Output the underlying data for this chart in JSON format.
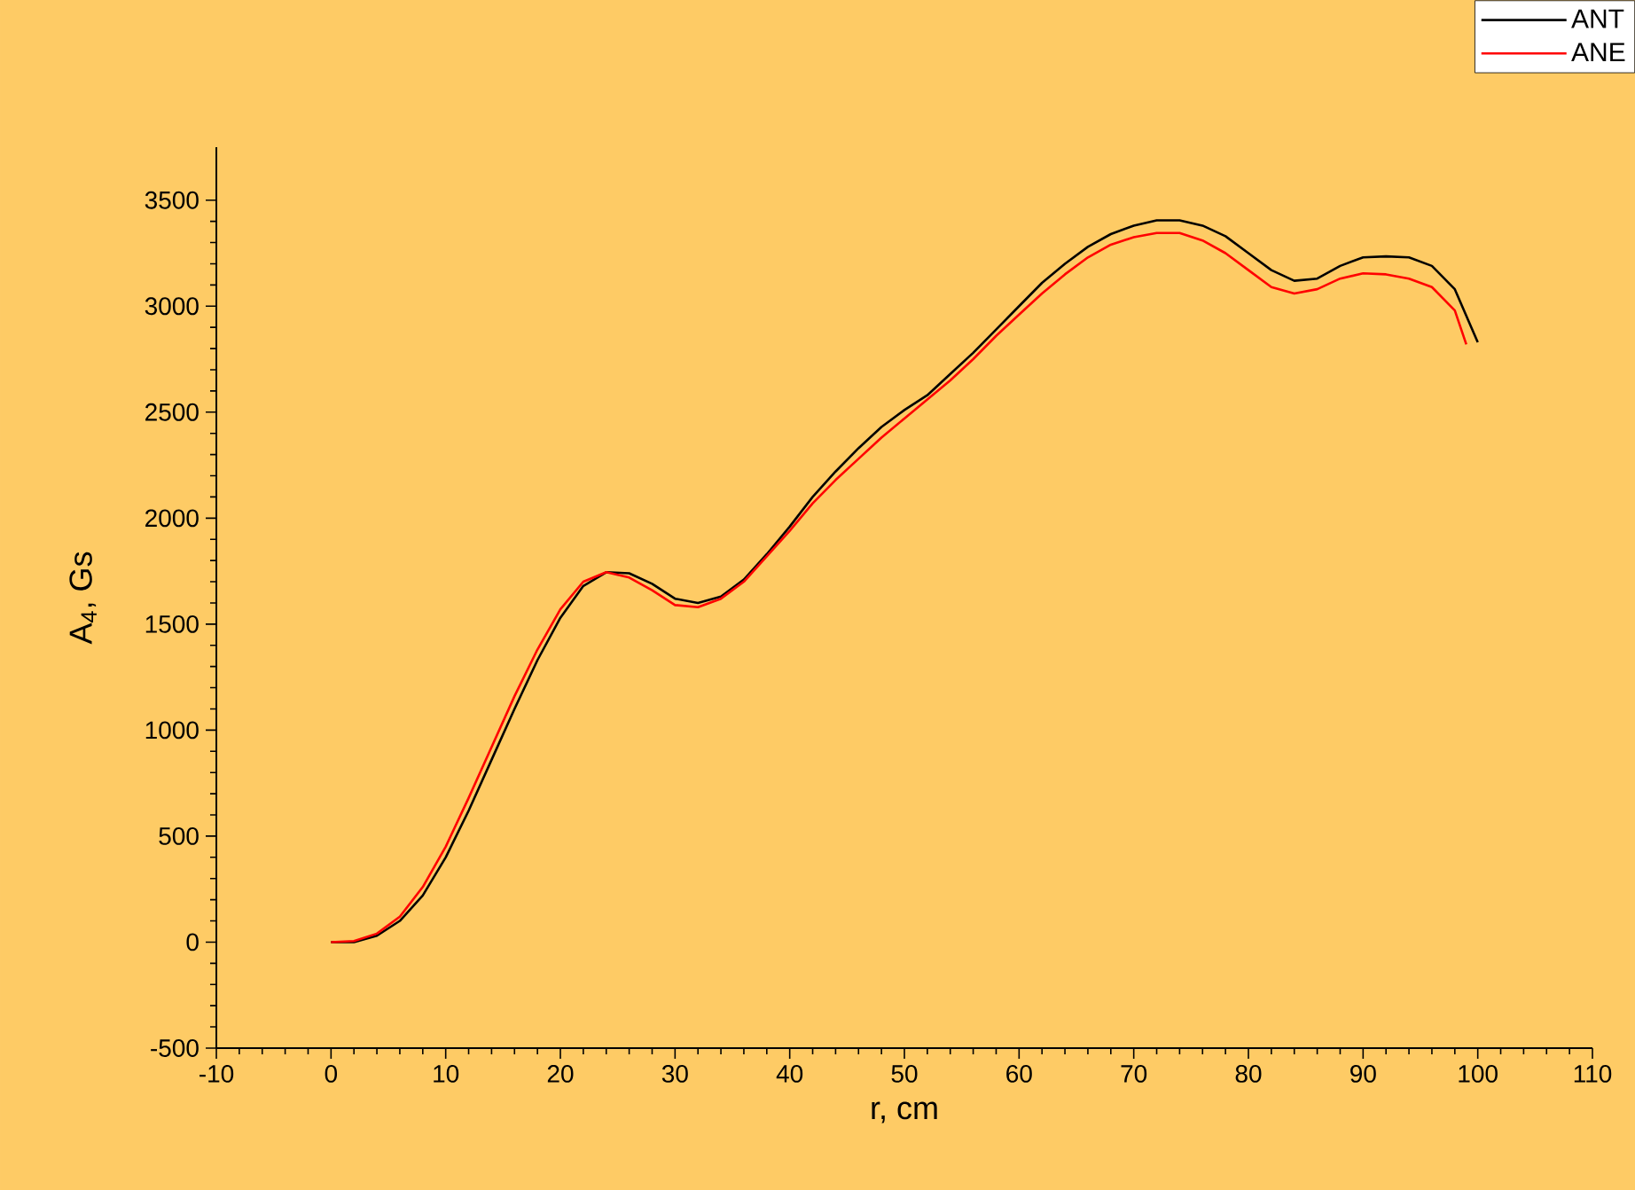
{
  "chart_data": {
    "type": "line",
    "xlabel": "r, cm",
    "ylabel": "A$_{4}$, Gs",
    "x": [
      0,
      2,
      4,
      6,
      8,
      10,
      12,
      14,
      16,
      18,
      20,
      22,
      24,
      26,
      28,
      30,
      32,
      34,
      36,
      38,
      40,
      42,
      44,
      46,
      48,
      50,
      52,
      54,
      56,
      58,
      60,
      62,
      64,
      66,
      68,
      70,
      72,
      74,
      76,
      78,
      80,
      82,
      84,
      86,
      88,
      90,
      92,
      94,
      96,
      98,
      100
    ],
    "series": [
      {
        "name": "ANT",
        "color": "#000000",
        "values": [
          0,
          0,
          30,
          100,
          220,
          400,
          620,
          860,
          1100,
          1330,
          1530,
          1680,
          1745,
          1740,
          1690,
          1620,
          1600,
          1630,
          1710,
          1830,
          1960,
          2100,
          2220,
          2330,
          2430,
          2510,
          2580,
          2680,
          2780,
          2890,
          3000,
          3110,
          3200,
          3280,
          3340,
          3380,
          3405,
          3405,
          3380,
          3330,
          3250,
          3170,
          3120,
          3130,
          3190,
          3230,
          3235,
          3230,
          3190,
          3080,
          2830
        ]
      },
      {
        "name": "ANE",
        "color": "#ff0000",
        "x": [
          0,
          2,
          4,
          6,
          8,
          10,
          12,
          14,
          16,
          18,
          20,
          22,
          24,
          26,
          28,
          30,
          32,
          34,
          36,
          38,
          40,
          42,
          44,
          46,
          48,
          50,
          52,
          54,
          56,
          58,
          60,
          62,
          64,
          66,
          68,
          70,
          72,
          74,
          76,
          78,
          80,
          82,
          84,
          86,
          88,
          90,
          92,
          94,
          96,
          98,
          99
        ],
        "values": [
          0,
          5,
          40,
          120,
          260,
          450,
          680,
          920,
          1160,
          1380,
          1570,
          1700,
          1745,
          1720,
          1660,
          1590,
          1580,
          1620,
          1700,
          1820,
          1940,
          2070,
          2180,
          2280,
          2380,
          2470,
          2560,
          2650,
          2750,
          2860,
          2960,
          3060,
          3150,
          3230,
          3290,
          3325,
          3345,
          3345,
          3310,
          3250,
          3170,
          3090,
          3060,
          3080,
          3130,
          3155,
          3150,
          3130,
          3090,
          2980,
          2820
        ]
      }
    ],
    "xlim": [
      -10,
      110
    ],
    "ylim": [
      -500,
      3750
    ],
    "xticks": [
      -10,
      0,
      10,
      20,
      30,
      40,
      50,
      60,
      70,
      80,
      90,
      100,
      110
    ],
    "yticks": [
      -500,
      0,
      500,
      1000,
      1500,
      2000,
      2500,
      3000,
      3500
    ],
    "legend": "top right",
    "grid": false,
    "marker": "none",
    "line_style": "solid"
  }
}
